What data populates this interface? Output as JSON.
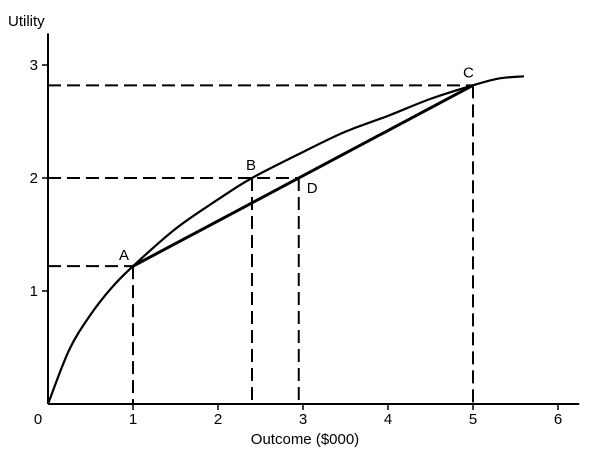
{
  "chart_data": {
    "type": "line",
    "title": "",
    "xlabel": "Outcome ($000)",
    "ylabel": "Utility",
    "xlim": [
      0,
      6.25
    ],
    "ylim": [
      0,
      3.28
    ],
    "grid": false,
    "x_ticks": [
      0,
      1,
      2,
      3,
      4,
      5,
      6
    ],
    "x_tick_labels": [
      "0",
      "1",
      "2",
      "3",
      "4",
      "5",
      "6"
    ],
    "y_ticks": [
      1,
      2,
      3
    ],
    "y_tick_labels": [
      "1",
      "2",
      "3"
    ],
    "series": [
      {
        "style": "curve",
        "x": [
          0,
          0.25,
          0.5,
          0.75,
          1.0,
          1.5,
          2.0,
          2.4,
          3.0,
          3.5,
          4.0,
          4.5,
          5.0,
          5.3,
          5.6
        ],
        "y": [
          0,
          0.48,
          0.79,
          1.03,
          1.22,
          1.55,
          1.81,
          2.0,
          2.23,
          2.41,
          2.55,
          2.7,
          2.82,
          2.88,
          2.9
        ]
      },
      {
        "style": "chord",
        "x": [
          1.0,
          5.0
        ],
        "y": [
          1.22,
          2.82
        ]
      }
    ],
    "points": [
      {
        "label": "A",
        "x": 1.0,
        "y": 1.22
      },
      {
        "label": "B",
        "x": 2.4,
        "y": 2.0
      },
      {
        "label": "C",
        "x": 5.0,
        "y": 2.82
      },
      {
        "label": "D",
        "x": 2.95,
        "y": 2.0
      }
    ]
  }
}
